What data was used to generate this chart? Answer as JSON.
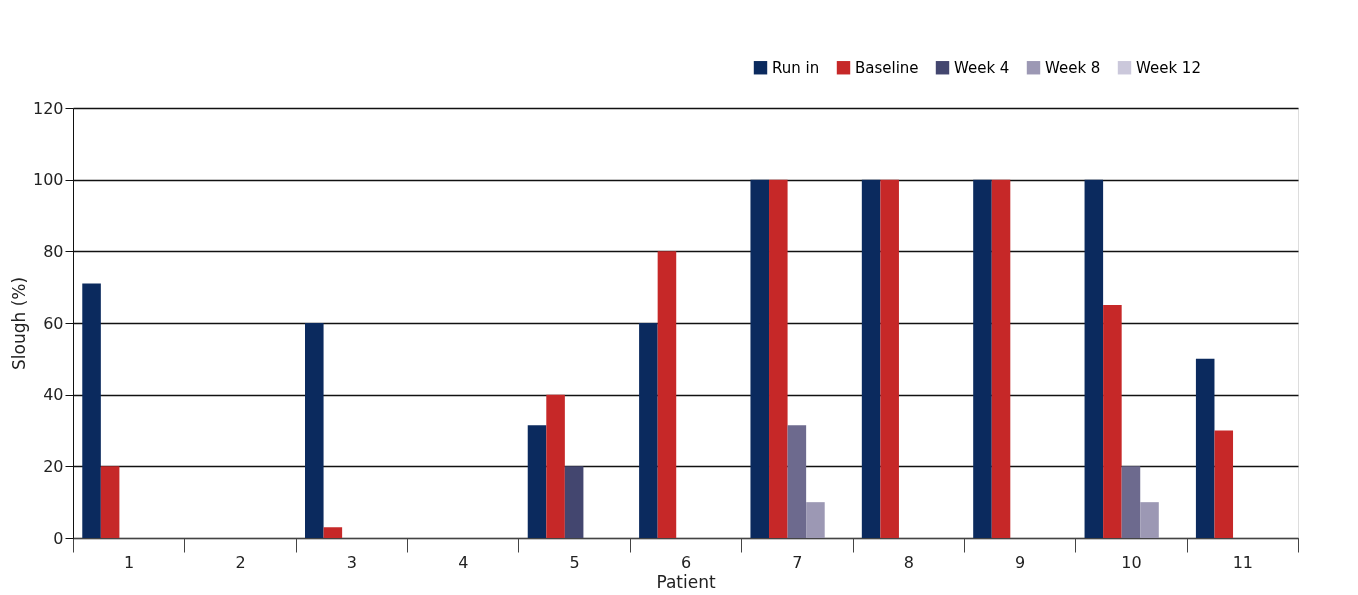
{
  "chart_data": {
    "type": "bar",
    "xlabel": "Patient",
    "ylabel": "Slough (%)",
    "categories": [
      "1",
      "2",
      "3",
      "4",
      "5",
      "6",
      "7",
      "8",
      "9",
      "10",
      "11"
    ],
    "series": [
      {
        "name": "Run in",
        "color": "#0b2a5e",
        "values": [
          71,
          null,
          60,
          null,
          31.5,
          60,
          100,
          100,
          100,
          100,
          50
        ]
      },
      {
        "name": "Baseline",
        "color": "#c62828",
        "values": [
          20,
          null,
          3,
          null,
          40,
          80,
          100,
          100,
          100,
          65,
          30
        ]
      },
      {
        "name": "Week 4",
        "color": "#43466f",
        "colors": [
          null,
          null,
          null,
          null,
          "#43466f",
          null,
          "#6d6a8e",
          null,
          null,
          "#6d6a8e",
          null
        ],
        "values": [
          null,
          null,
          null,
          null,
          20,
          null,
          31.5,
          null,
          null,
          20,
          null
        ]
      },
      {
        "name": "Week 8",
        "color": "#9c98b4",
        "values": [
          null,
          null,
          null,
          null,
          null,
          null,
          10,
          null,
          null,
          10,
          null
        ]
      },
      {
        "name": "Week 12",
        "color": "#cbc8db",
        "values": [
          null,
          null,
          null,
          null,
          null,
          null,
          null,
          null,
          null,
          null,
          null
        ]
      }
    ],
    "ylim": [
      0,
      120
    ],
    "yticks": [
      0,
      20,
      40,
      60,
      80,
      100,
      120
    ],
    "grid": "y",
    "legend": "top right"
  }
}
